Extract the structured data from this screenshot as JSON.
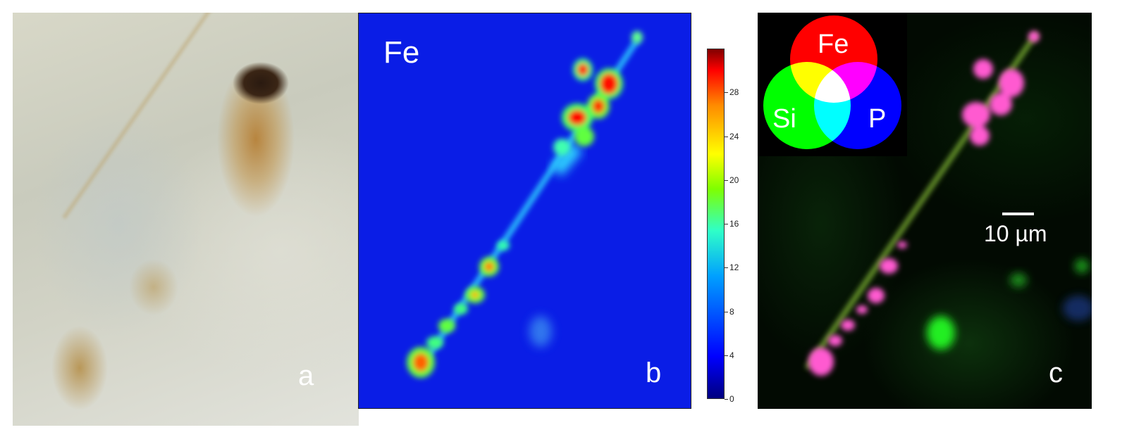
{
  "panels": {
    "a": {
      "letter": "a"
    },
    "b": {
      "letter": "b",
      "element_label": "Fe"
    },
    "c": {
      "letter": "c",
      "venn": {
        "fe": "Fe",
        "si": "Si",
        "p": "P"
      },
      "scalebar_label": "10 µm"
    }
  },
  "colorbar": {
    "ticks": [
      "0",
      "4",
      "8",
      "12",
      "16",
      "20",
      "24",
      "28"
    ],
    "colormap": [
      "#00007f",
      "#0000ff",
      "#00a0ff",
      "#2fffc8",
      "#7fff00",
      "#ffff00",
      "#ff8a00",
      "#ff0000",
      "#7f0000"
    ]
  },
  "colors": {
    "fe_channel": "#ff0000",
    "si_channel": "#00ff00",
    "p_channel": "#0000ff",
    "overlay_fe_p": "#ff55cc"
  }
}
